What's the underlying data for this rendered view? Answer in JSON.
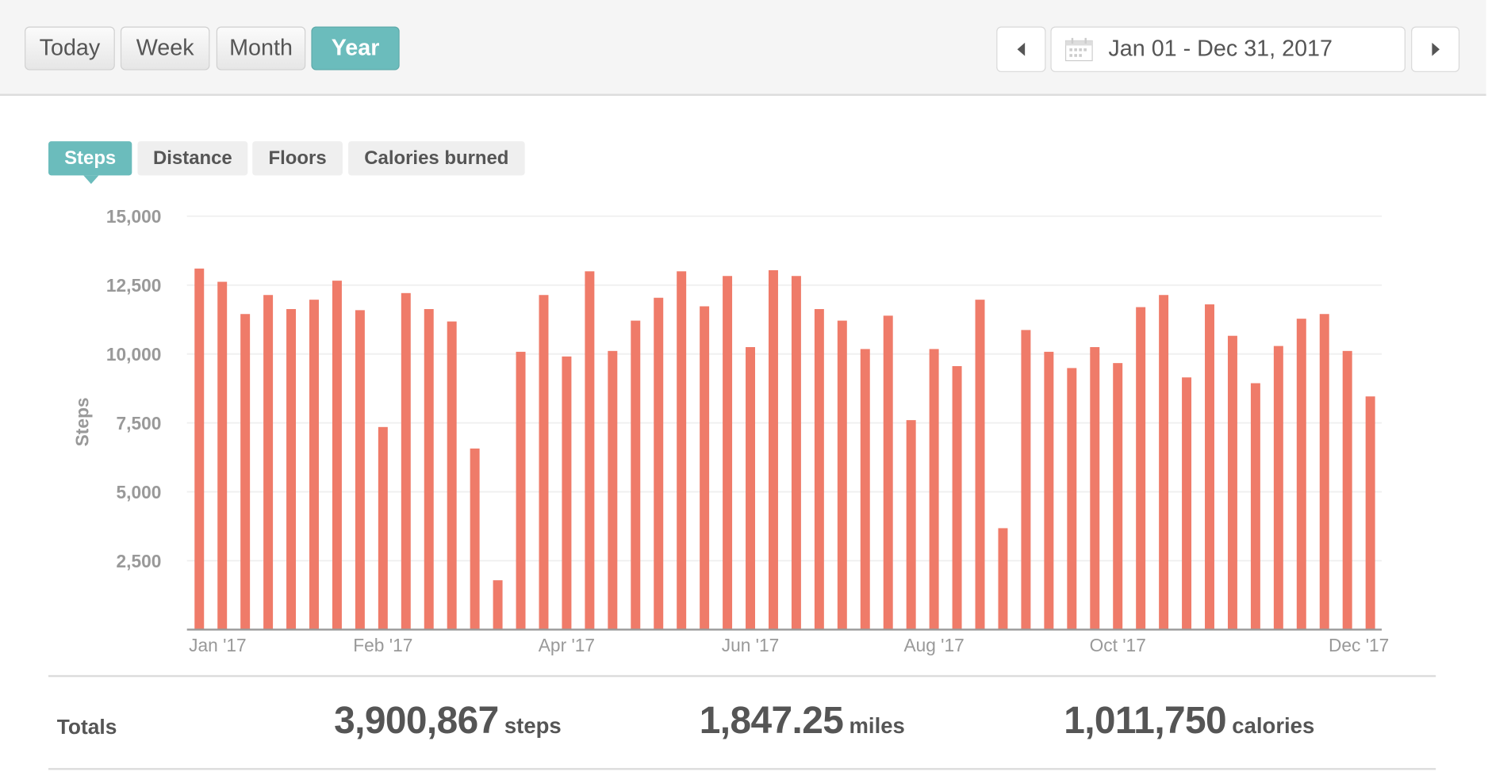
{
  "period_buttons": [
    {
      "label": "Today",
      "active": false
    },
    {
      "label": "Week",
      "active": false
    },
    {
      "label": "Month",
      "active": false
    },
    {
      "label": "Year",
      "active": true
    }
  ],
  "date_range": {
    "label": "Jan 01 - Dec 31, 2017",
    "prev_icon": "caret-left-icon",
    "next_icon": "caret-right-icon",
    "calendar_icon": "calendar-icon"
  },
  "metric_tabs": [
    {
      "label": "Steps",
      "active": true
    },
    {
      "label": "Distance",
      "active": false
    },
    {
      "label": "Floors",
      "active": false
    },
    {
      "label": "Calories burned",
      "active": false
    }
  ],
  "colors": {
    "accent": "#6bbcbc",
    "bar": "#ef7b69"
  },
  "chart_data": {
    "type": "bar",
    "ylabel": "Steps",
    "ylim": [
      0,
      15000
    ],
    "yticks": [
      {
        "v": 2500,
        "label": "2,500"
      },
      {
        "v": 5000,
        "label": "5,000"
      },
      {
        "v": 7500,
        "label": "7,500"
      },
      {
        "v": 10000,
        "label": "10,000"
      },
      {
        "v": 12500,
        "label": "12,500"
      },
      {
        "v": 15000,
        "label": "15,000"
      }
    ],
    "xticks": [
      {
        "index": 0.8,
        "label": "Jan '17"
      },
      {
        "index": 8,
        "label": "Feb '17"
      },
      {
        "index": 16,
        "label": "Apr '17"
      },
      {
        "index": 24,
        "label": "Jun '17"
      },
      {
        "index": 32,
        "label": "Aug '17"
      },
      {
        "index": 40,
        "label": "Oct '17"
      },
      {
        "index": 50.5,
        "label": "Dec '17"
      }
    ],
    "grid": true,
    "values": [
      13100,
      12620,
      11450,
      12140,
      11630,
      11970,
      12660,
      11590,
      7350,
      12210,
      11630,
      11180,
      6570,
      1790,
      10080,
      12140,
      9910,
      13000,
      10110,
      11210,
      12040,
      13000,
      11730,
      12830,
      10250,
      13040,
      12830,
      11630,
      11210,
      10180,
      11390,
      7600,
      10180,
      9560,
      11970,
      3680,
      10870,
      10080,
      9490,
      10250,
      9670,
      11700,
      12140,
      9150,
      11800,
      10660,
      8940,
      10290,
      11280,
      11450,
      10110,
      8460
    ]
  },
  "totals": {
    "label": "Totals",
    "steps": {
      "value": "3,900,867",
      "unit": "steps"
    },
    "distance": {
      "value": "1,847.25",
      "unit": "miles"
    },
    "calories": {
      "value": "1,011,750",
      "unit": "calories"
    }
  }
}
